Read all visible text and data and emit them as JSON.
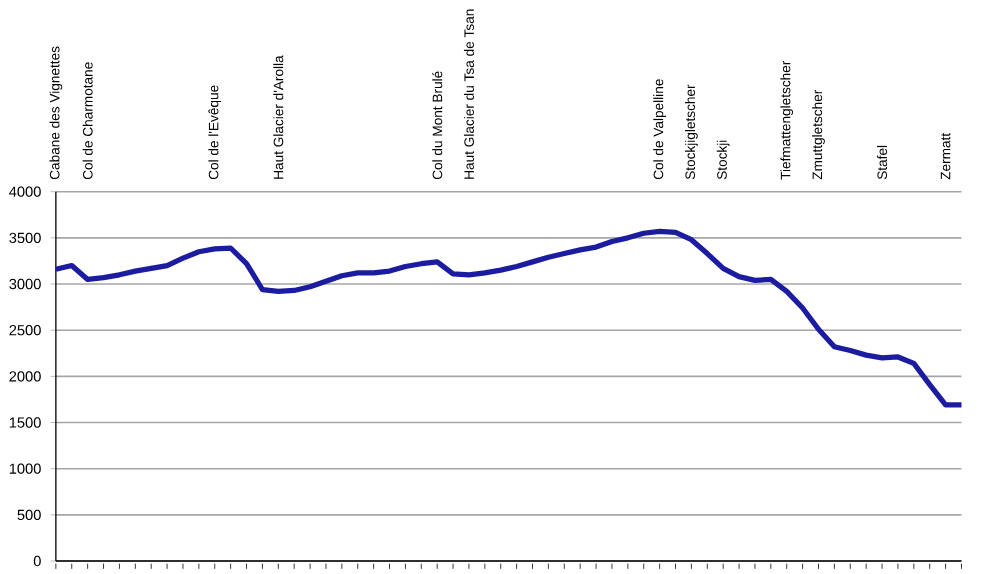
{
  "chart_data": {
    "type": "line",
    "categories": [
      "Cabane des Vignettes",
      null,
      "Col de Charmotane",
      null,
      null,
      null,
      null,
      null,
      null,
      null,
      "Col de l'Evêque",
      null,
      null,
      null,
      "Haut Glacier d'Arolla",
      null,
      null,
      null,
      null,
      null,
      null,
      null,
      null,
      null,
      "Col du Mont Brulé",
      null,
      "Haut Glacier du Tsa de Tsan",
      null,
      null,
      null,
      null,
      null,
      null,
      null,
      null,
      null,
      null,
      null,
      "Col de Valpelline",
      null,
      "Stockjigletscher",
      null,
      "Stockji",
      null,
      null,
      null,
      "Tiefmattengletscher",
      null,
      "Zmuttgletscher",
      null,
      null,
      null,
      "Stafel",
      null,
      null,
      null,
      "Zermatt",
      null
    ],
    "values": [
      3160,
      3200,
      3050,
      3070,
      3100,
      3140,
      3170,
      3200,
      3280,
      3350,
      3380,
      3390,
      3220,
      2940,
      2920,
      2930,
      2970,
      3030,
      3090,
      3120,
      3120,
      3140,
      3190,
      3220,
      3240,
      3110,
      3100,
      3120,
      3150,
      3190,
      3240,
      3290,
      3330,
      3370,
      3400,
      3460,
      3500,
      3550,
      3570,
      3560,
      3480,
      3330,
      3170,
      3080,
      3040,
      3050,
      2920,
      2740,
      2510,
      2320,
      2280,
      2230,
      2200,
      2210,
      2140,
      1910,
      1690,
      1690
    ],
    "color": "#1c1ca0",
    "ylim": [
      0,
      4000
    ],
    "yticks": [
      0,
      500,
      1000,
      1500,
      2000,
      2500,
      3000,
      3500,
      4000
    ],
    "grid": "y"
  }
}
